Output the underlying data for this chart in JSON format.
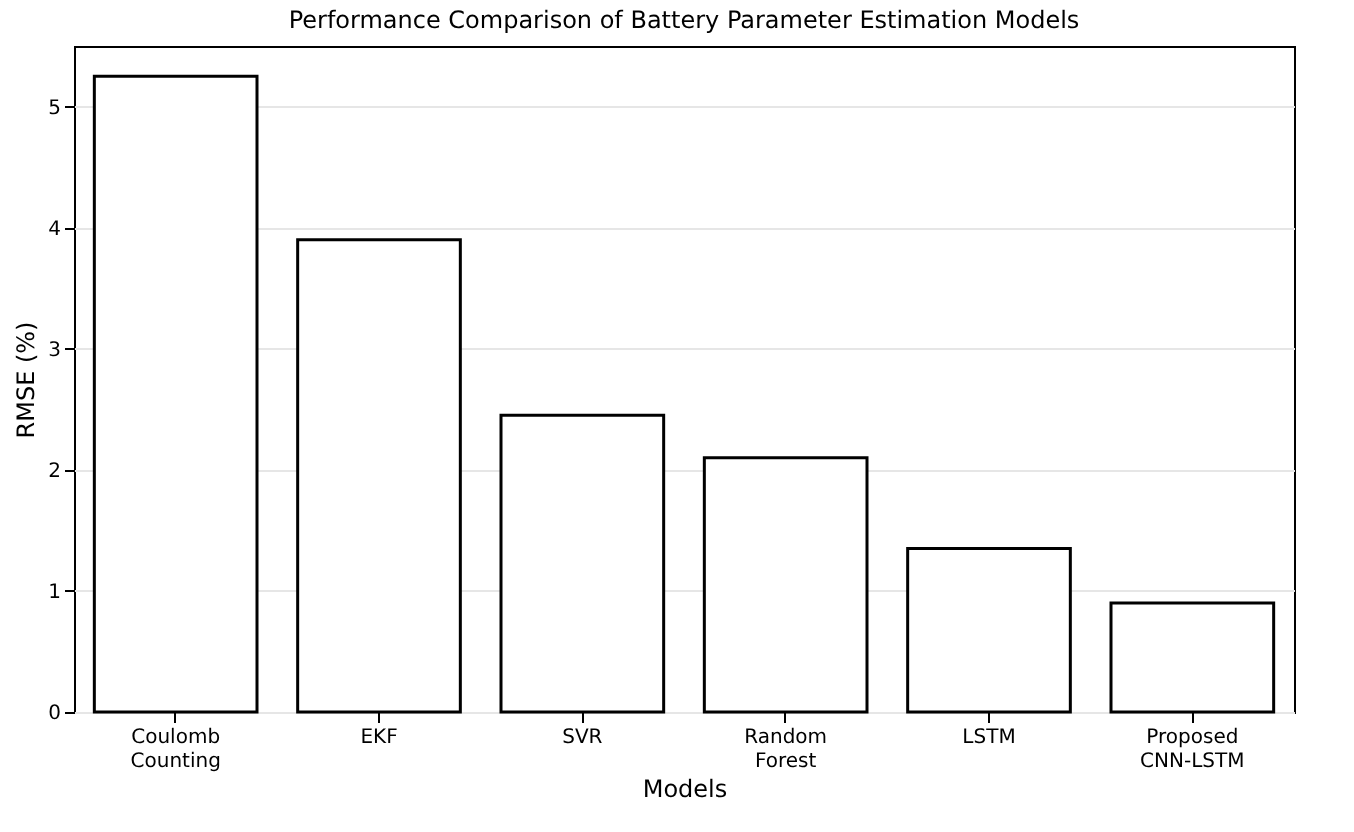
{
  "chart_data": {
    "type": "bar",
    "title": "Performance Comparison of Battery Parameter Estimation Models",
    "xlabel": "Models",
    "ylabel": "RMSE (%)",
    "categories": [
      "Coulomb Counting",
      "EKF",
      "SVR",
      "Random Forest",
      "LSTM",
      "Proposed CNN-LSTM"
    ],
    "values": [
      5.25,
      3.9,
      2.45,
      2.1,
      1.35,
      0.9
    ],
    "color": "#ffffff",
    "ylim": [
      0,
      5.5
    ],
    "yticks": [
      0,
      1,
      2,
      3,
      4,
      5
    ],
    "grid": "y"
  }
}
